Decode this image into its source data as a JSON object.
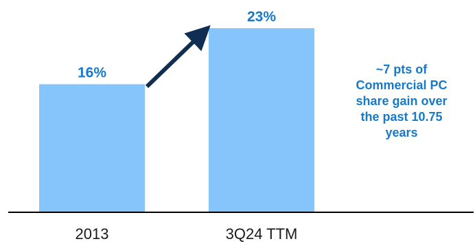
{
  "chart_data": {
    "type": "bar",
    "categories": [
      "2013",
      "3Q24 TTM"
    ],
    "values": [
      16,
      23
    ],
    "value_labels": [
      "16%",
      "23%"
    ],
    "ylim": [
      0,
      23
    ],
    "grid": false,
    "legend": "none",
    "annotation": "~7 pts of\nCommercial PC\nshare gain over\nthe past 10.75\nyears"
  },
  "colors": {
    "bar": "#85c5fb",
    "value_label": "#1679c9",
    "annotation": "#1679c9",
    "axis": "#000000",
    "arrow": "#102d52",
    "tick_label": "#1a1a1a"
  }
}
